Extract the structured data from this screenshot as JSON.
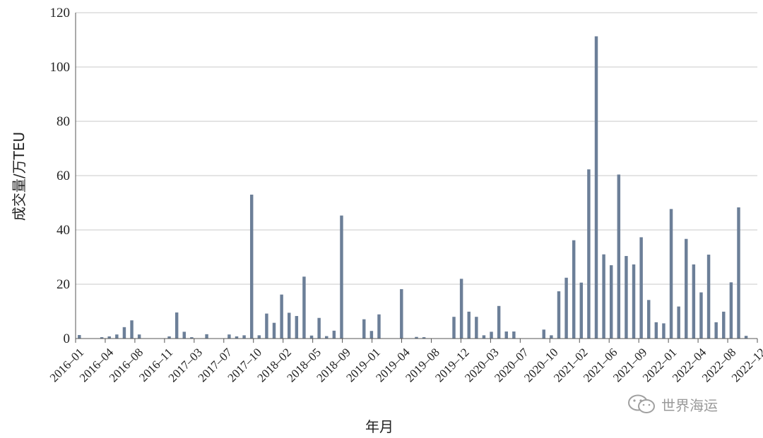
{
  "chart_data": {
    "type": "bar",
    "ylabel": "成交量/万TEU",
    "xlabel": "年月",
    "ylim": [
      0,
      120
    ],
    "yticks": [
      0,
      20,
      40,
      60,
      80,
      100,
      120
    ],
    "grid": true,
    "series_color": "#6c7f98",
    "tick_labels": [
      "2016–01",
      "2016–04",
      "2016–08",
      "2016–11",
      "2017–03",
      "2017–07",
      "2017–10",
      "2018–02",
      "2018–05",
      "2018–09",
      "2019–01",
      "2019–04",
      "2019–08",
      "2019–12",
      "2020–03",
      "2020–07",
      "2020–10",
      "2021–02",
      "2021–06",
      "2021–09",
      "2022–01",
      "2022–04",
      "2022–08",
      "2022–12"
    ],
    "values": [
      1.3,
      0,
      0,
      0.5,
      0.8,
      1.5,
      4.2,
      6.7,
      1.5,
      0,
      0,
      0,
      0.8,
      9.6,
      2.5,
      0.5,
      0,
      1.6,
      0,
      0,
      1.5,
      0.8,
      1.2,
      53.0,
      1.2,
      9.2,
      5.8,
      16.2,
      9.5,
      8.3,
      22.8,
      1.1,
      7.6,
      0.9,
      2.9,
      45.3,
      0,
      0,
      7.1,
      2.8,
      8.9,
      0,
      0,
      18.2,
      0,
      0.6,
      0.5,
      0,
      0,
      0,
      8.0,
      22.0,
      9.9,
      8.0,
      1.2,
      2.5,
      12.0,
      2.6,
      2.6,
      0,
      0,
      0,
      3.3,
      1.2,
      17.4,
      22.4,
      36.2,
      20.6,
      62.3,
      111.3,
      31.0,
      27.0,
      60.4,
      30.4,
      27.3,
      37.3,
      14.2,
      6.0,
      5.6,
      47.7,
      11.8,
      36.7,
      27.3,
      17.0,
      30.9,
      6.0,
      9.9,
      20.7,
      48.3,
      1.0,
      0
    ]
  },
  "watermark": {
    "text": "世界海运",
    "icon": "wechat-icon"
  }
}
